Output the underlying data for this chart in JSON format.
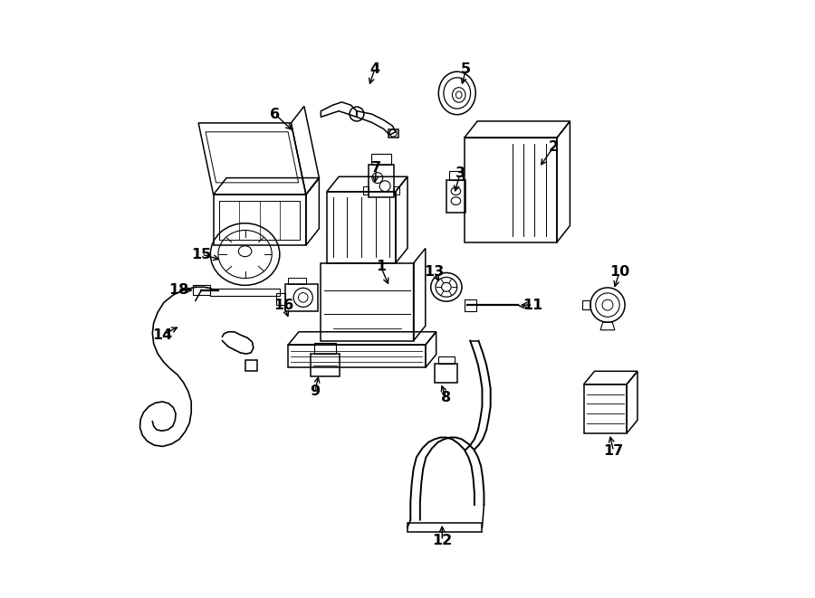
{
  "bg_color": "#ffffff",
  "line_color": "#000000",
  "figsize": [
    9.0,
    6.61
  ],
  "dpi": 100,
  "label_positions": {
    "1": [
      0.455,
      0.555,
      0.47,
      0.52
    ],
    "2": [
      0.745,
      0.755,
      0.72,
      0.72
    ],
    "3": [
      0.588,
      0.71,
      0.578,
      0.675
    ],
    "4": [
      0.445,
      0.885,
      0.435,
      0.855
    ],
    "5": [
      0.598,
      0.885,
      0.59,
      0.855
    ],
    "6": [
      0.278,
      0.81,
      0.31,
      0.78
    ],
    "7": [
      0.448,
      0.72,
      0.445,
      0.69
    ],
    "8": [
      0.565,
      0.335,
      0.555,
      0.36
    ],
    "9": [
      0.345,
      0.345,
      0.352,
      0.375
    ],
    "10": [
      0.855,
      0.545,
      0.845,
      0.515
    ],
    "11": [
      0.71,
      0.49,
      0.685,
      0.49
    ],
    "12": [
      0.558,
      0.095,
      0.558,
      0.125
    ],
    "13": [
      0.545,
      0.545,
      0.555,
      0.525
    ],
    "14": [
      0.09,
      0.44,
      0.12,
      0.455
    ],
    "15": [
      0.155,
      0.575,
      0.19,
      0.565
    ],
    "16": [
      0.293,
      0.49,
      0.302,
      0.465
    ],
    "17": [
      0.845,
      0.245,
      0.838,
      0.275
    ],
    "18": [
      0.117,
      0.515,
      0.145,
      0.515
    ]
  }
}
